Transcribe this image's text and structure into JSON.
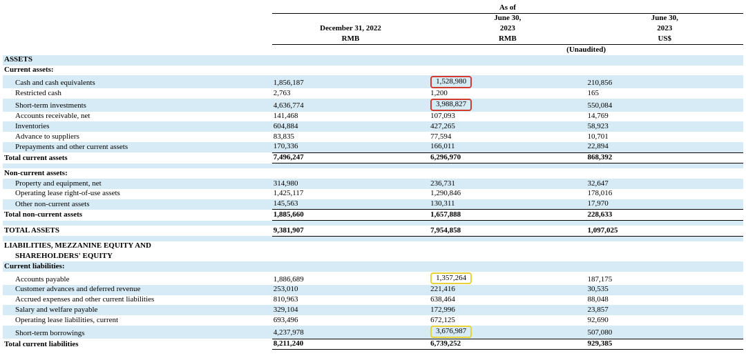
{
  "colors": {
    "row_shade": "#d6ebf5",
    "highlight_red": "#d13a2f",
    "highlight_yellow": "#e7d23a",
    "text": "#000000",
    "background": "#ffffff",
    "rule": "#000000"
  },
  "typography": {
    "font_family": "Times New Roman",
    "base_fontsize_pt": 9,
    "header_weight": "bold"
  },
  "header": {
    "as_of": "As of",
    "col1_line1": "December 31, 2022",
    "col1_line2": "RMB",
    "col2_line1": "June 30,",
    "col2_line2": "2023",
    "col2_line3": "RMB",
    "col3_line1": "June 30,",
    "col3_line2": "2023",
    "col3_line3": "US$",
    "unaudited": "(Unaudited)"
  },
  "sections": {
    "assets": "ASSETS",
    "current_assets": "Current assets:",
    "total_current_assets": "Total current assets",
    "non_current_assets": "Non-current assets:",
    "total_non_current_assets": "Total non-current assets",
    "total_assets": "TOTAL ASSETS",
    "lme": "LIABILITIES, MEZZANINE EQUITY AND",
    "lme2": "SHAREHOLDERS' EQUITY",
    "current_liabilities": "Current liabilities:",
    "total_current_liabilities": "Total current liabilities"
  },
  "rows": {
    "cash": {
      "label": "Cash and cash equivalents",
      "c1": "1,856,187",
      "c2": "1,528,980",
      "c3": "210,856",
      "hl": "red"
    },
    "restricted": {
      "label": "Restricted cash",
      "c1": "2,763",
      "c2": "1,200",
      "c3": "165"
    },
    "sti": {
      "label": "Short-term investments",
      "c1": "4,636,774",
      "c2": "3,988,827",
      "c3": "550,084",
      "hl": "red"
    },
    "ar": {
      "label": "Accounts receivable, net",
      "c1": "141,468",
      "c2": "107,093",
      "c3": "14,769"
    },
    "inv": {
      "label": "Inventories",
      "c1": "604,884",
      "c2": "427,265",
      "c3": "58,923"
    },
    "adv": {
      "label": "Advance to suppliers",
      "c1": "83,835",
      "c2": "77,594",
      "c3": "10,701"
    },
    "prepay": {
      "label": "Prepayments and other current assets",
      "c1": "170,336",
      "c2": "166,011",
      "c3": "22,894"
    },
    "tca": {
      "c1": "7,496,247",
      "c2": "6,296,970",
      "c3": "868,392"
    },
    "ppe": {
      "label": "Property and equipment, net",
      "c1": "314,980",
      "c2": "236,731",
      "c3": "32,647"
    },
    "rou": {
      "label": "Operating lease right-of-use assets",
      "c1": "1,425,117",
      "c2": "1,290,846",
      "c3": "178,016"
    },
    "onca": {
      "label": "Other non-current assets",
      "c1": "145,563",
      "c2": "130,311",
      "c3": "17,970"
    },
    "tnca": {
      "c1": "1,885,660",
      "c2": "1,657,888",
      "c3": "228,633"
    },
    "ta": {
      "c1": "9,381,907",
      "c2": "7,954,858",
      "c3": "1,097,025"
    },
    "ap": {
      "label": "Accounts payable",
      "c1": "1,886,689",
      "c2": "1,357,264",
      "c3": "187,175",
      "hl": "yellow"
    },
    "cadv": {
      "label": "Customer advances and deferred revenue",
      "c1": "253,010",
      "c2": "221,416",
      "c3": "30,535"
    },
    "accr": {
      "label": "Accrued expenses and other current liabilities",
      "c1": "810,963",
      "c2": "638,464",
      "c3": "88,048"
    },
    "sal": {
      "label": "Salary and welfare payable",
      "c1": "329,104",
      "c2": "172,996",
      "c3": "23,857"
    },
    "oll": {
      "label": "Operating lease liabilities, current",
      "c1": "693,496",
      "c2": "672,125",
      "c3": "92,690"
    },
    "stb": {
      "label": "Short-term borrowings",
      "c1": "4,237,978",
      "c2": "3,676,987",
      "c3": "507,080",
      "hl": "yellow"
    },
    "tcl": {
      "c1": "8,211,240",
      "c2": "6,739,252",
      "c3": "929,385"
    }
  }
}
